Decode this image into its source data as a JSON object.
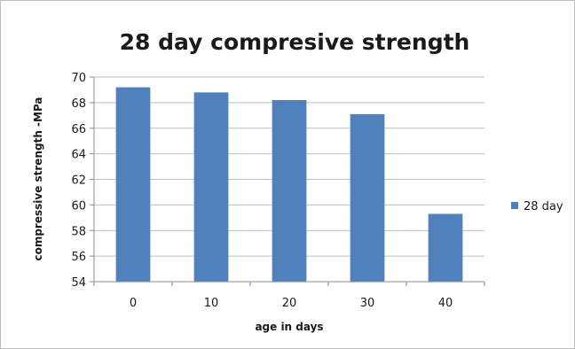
{
  "chart_data": {
    "type": "bar",
    "title": "28 day compresive strength",
    "xlabel": "age in days",
    "ylabel": "compressive strength -MPa",
    "categories": [
      "0",
      "10",
      "20",
      "30",
      "40"
    ],
    "series": [
      {
        "name": "28 day",
        "values": [
          69.2,
          68.8,
          68.2,
          67.1,
          59.3
        ],
        "color": "#4f81bd"
      }
    ],
    "ylim": [
      54,
      70
    ],
    "yticks": [
      54,
      56,
      58,
      60,
      62,
      64,
      66,
      68,
      70
    ],
    "grid": true,
    "legend_position": "right"
  }
}
